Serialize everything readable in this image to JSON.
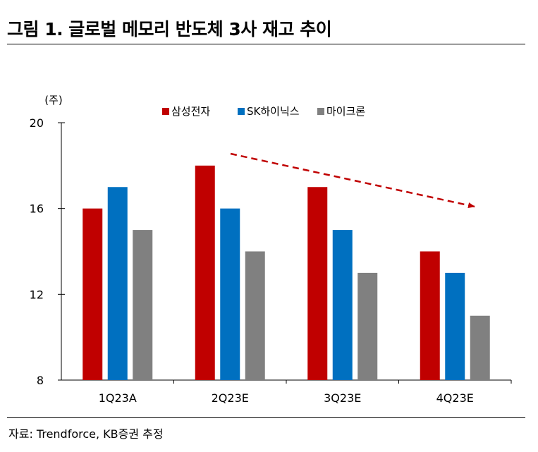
{
  "title": "그림 1. 글로벌 메모리 반도체 3사 재고 추이",
  "source": "자료: Trendforce, KB증권 추정",
  "chart_data": {
    "type": "bar",
    "ylabel": "(주)",
    "ylim": [
      8,
      20
    ],
    "yticks": [
      8,
      12,
      16,
      20
    ],
    "categories": [
      "1Q23A",
      "2Q23E",
      "3Q23E",
      "4Q23E"
    ],
    "legend_position": "top",
    "grid": false,
    "series": [
      {
        "name": "삼성전자",
        "color": "#c00000",
        "values": [
          16,
          18,
          17,
          14
        ]
      },
      {
        "name": "SK하이닉스",
        "color": "#0070c0",
        "values": [
          17,
          16,
          15,
          13
        ]
      },
      {
        "name": "마이크론",
        "color": "#808080",
        "values": [
          15,
          14,
          13,
          11
        ]
      }
    ],
    "annotation": {
      "type": "dashed-arrow",
      "color": "#c00000",
      "meaning": "downward trend"
    }
  }
}
